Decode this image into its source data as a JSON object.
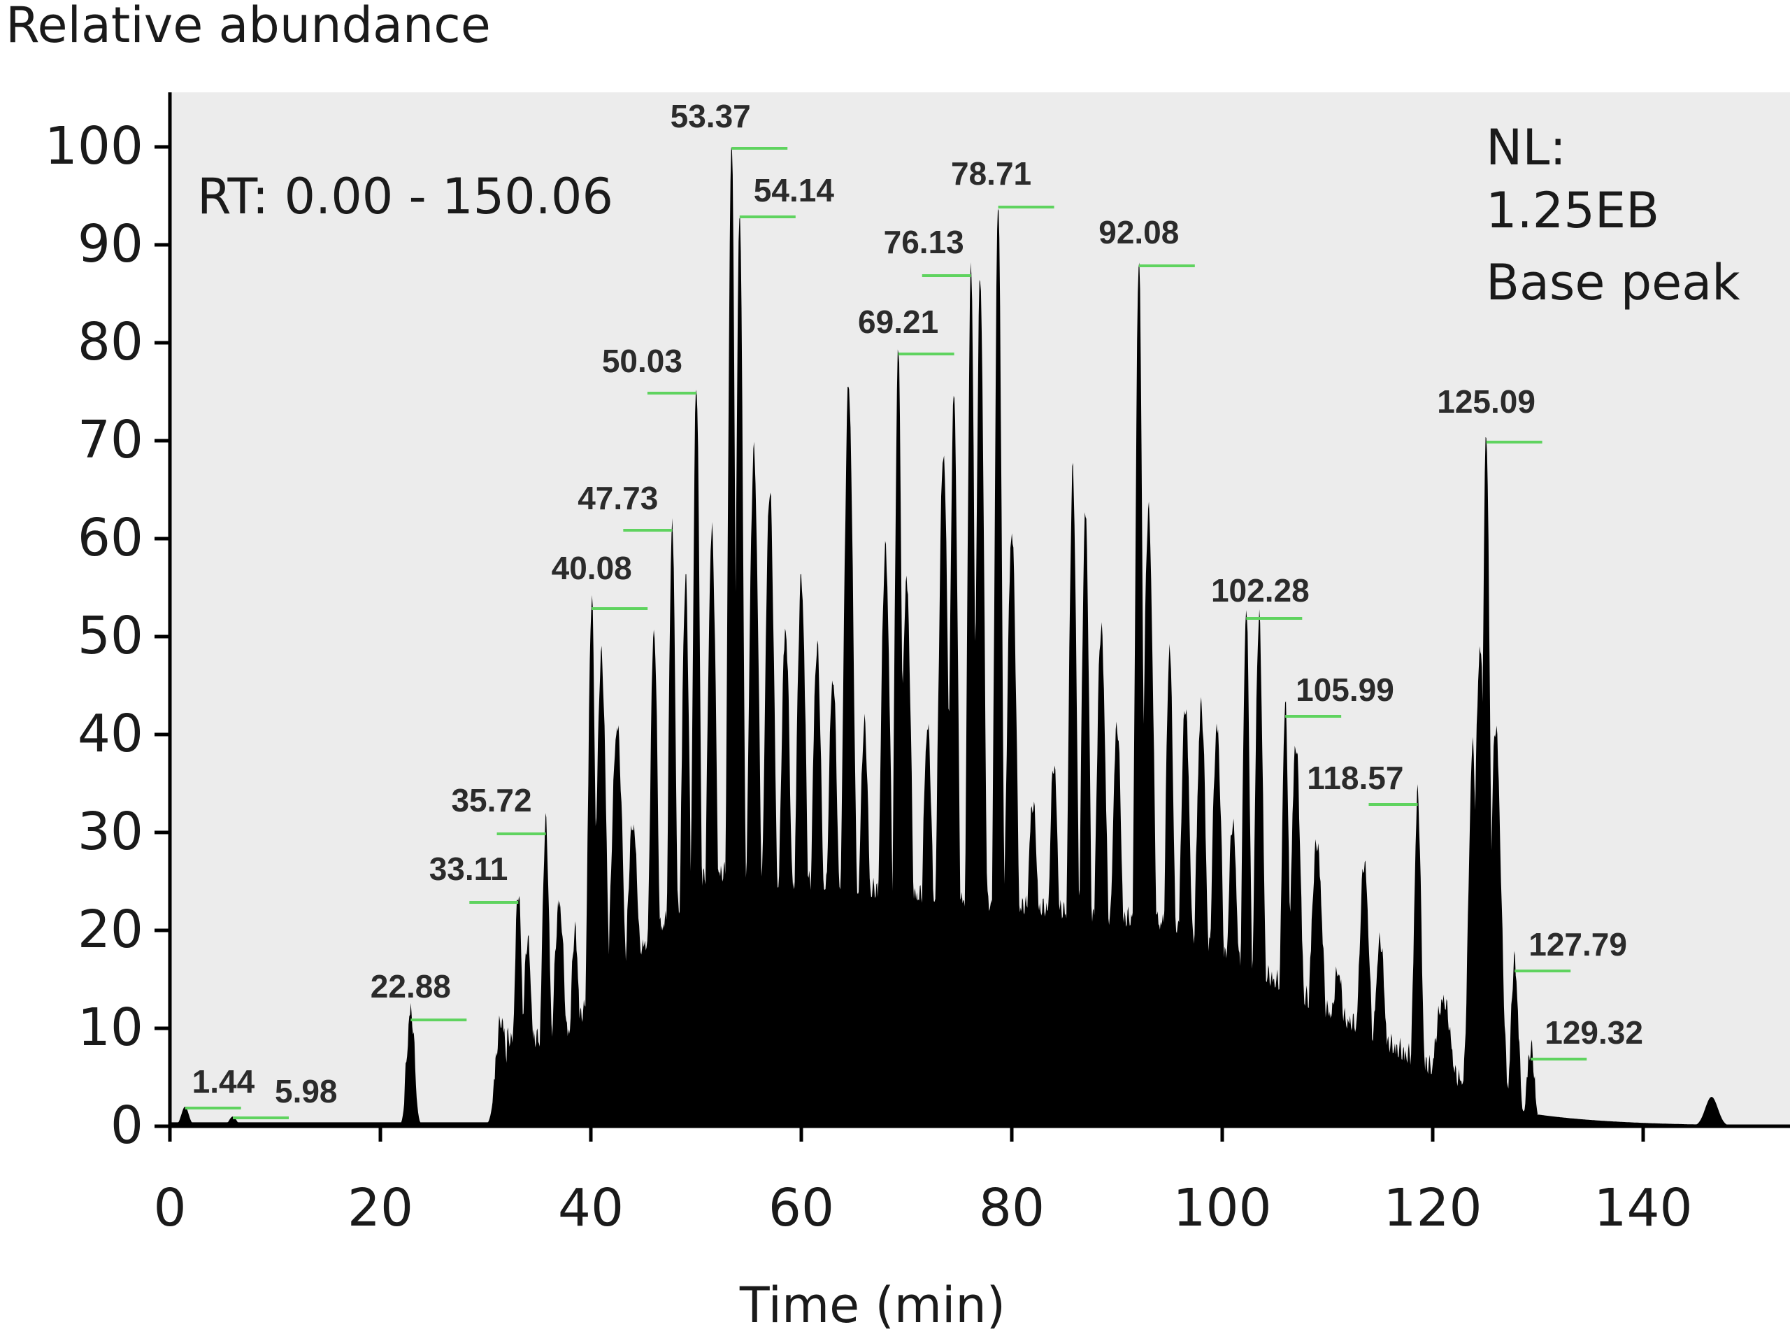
{
  "chart_data": {
    "type": "area",
    "ylabel": "Relative abundance",
    "xlabel": "Time (min)",
    "xlim": [
      0,
      150.06
    ],
    "ylim": [
      0,
      100
    ],
    "x_ticks": [
      0,
      20,
      40,
      60,
      80,
      100,
      120,
      140
    ],
    "y_ticks": [
      0,
      10,
      20,
      30,
      40,
      50,
      60,
      70,
      80,
      90,
      100
    ],
    "grid": false,
    "colors": {
      "trace": "#000000",
      "plot_bg": "#ececec",
      "leader": "#5fd35f"
    },
    "rt_range": "RT: 0.00 - 150.06",
    "info": [
      "NL:",
      "1.25EB",
      "Base peak"
    ],
    "peaks": [
      {
        "time": 1.44,
        "label": "1.44",
        "abundance": 2
      },
      {
        "time": 5.98,
        "label": "5.98",
        "abundance": 1
      },
      {
        "time": 22.88,
        "label": "22.88",
        "abundance": 11
      },
      {
        "time": 33.11,
        "label": "33.11",
        "abundance": 23
      },
      {
        "time": 35.72,
        "label": "35.72",
        "abundance": 30
      },
      {
        "time": 40.08,
        "label": "40.08",
        "abundance": 53
      },
      {
        "time": 47.73,
        "label": "47.73",
        "abundance": 61
      },
      {
        "time": 50.03,
        "label": "50.03",
        "abundance": 75
      },
      {
        "time": 53.37,
        "label": "53.37",
        "abundance": 100
      },
      {
        "time": 54.14,
        "label": "54.14",
        "abundance": 93
      },
      {
        "time": 69.21,
        "label": "69.21",
        "abundance": 79
      },
      {
        "time": 76.13,
        "label": "76.13",
        "abundance": 87
      },
      {
        "time": 78.71,
        "label": "78.71",
        "abundance": 94
      },
      {
        "time": 92.08,
        "label": "92.08",
        "abundance": 88
      },
      {
        "time": 102.28,
        "label": "102.28",
        "abundance": 52
      },
      {
        "time": 105.99,
        "label": "105.99",
        "abundance": 42
      },
      {
        "time": 118.57,
        "label": "118.57",
        "abundance": 33
      },
      {
        "time": 125.09,
        "label": "125.09",
        "abundance": 70
      },
      {
        "time": 127.79,
        "label": "127.79",
        "abundance": 16
      },
      {
        "time": 129.32,
        "label": "129.32",
        "abundance": 7
      }
    ]
  }
}
